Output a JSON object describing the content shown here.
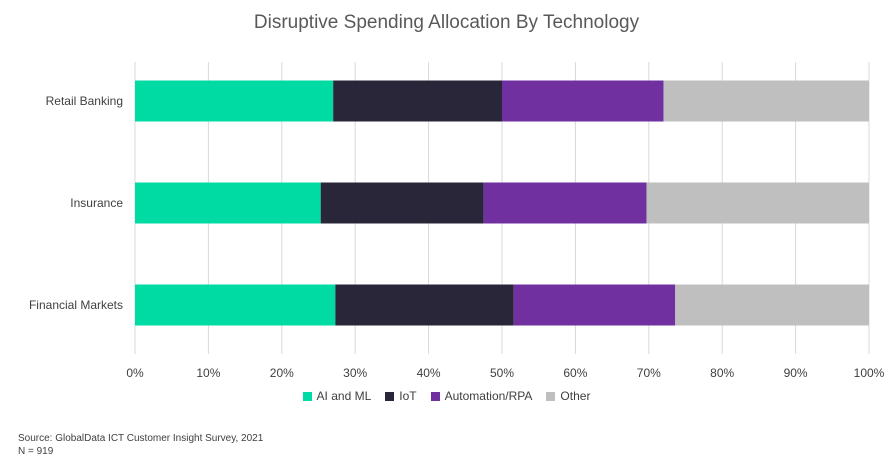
{
  "chart_data": {
    "type": "bar",
    "orientation": "horizontal",
    "stacked": true,
    "title": "Disruptive Spending Allocation By Technology",
    "categories": [
      "Retail Banking",
      "Insurance",
      "Financial Markets"
    ],
    "series": [
      {
        "name": "AI and ML",
        "color": "#00dba4",
        "values": [
          27,
          25.3,
          27.3
        ]
      },
      {
        "name": "IoT",
        "color": "#2a2639",
        "values": [
          23,
          22.2,
          24.3
        ]
      },
      {
        "name": "Automation/RPA",
        "color": "#7030a0",
        "values": [
          22,
          22.2,
          22
        ]
      },
      {
        "name": "Other",
        "color": "#bfbfbf",
        "values": [
          28,
          30.3,
          26.4
        ]
      }
    ],
    "x_ticks": [
      "0%",
      "10%",
      "20%",
      "30%",
      "40%",
      "50%",
      "60%",
      "70%",
      "80%",
      "90%",
      "100%"
    ],
    "xlim": [
      0,
      100
    ],
    "grid": true,
    "legend_position": "bottom"
  },
  "source": {
    "line1": "Source:  GlobalData ICT Customer Insight Survey, 2021",
    "line2": "N = 919"
  }
}
